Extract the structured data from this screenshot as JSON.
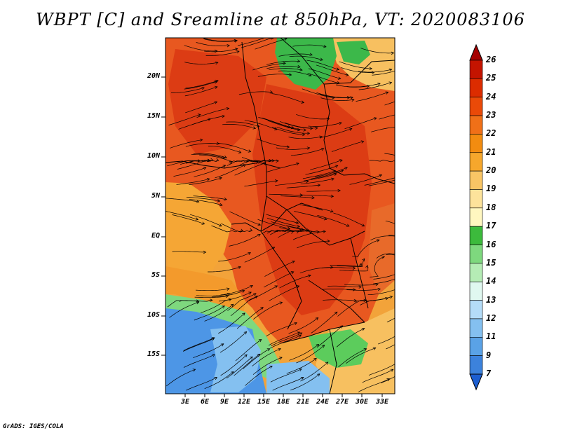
{
  "title": "WBPT [C] and Sreamline at 850hPa, VT: 2020083106",
  "footer": "GrADS: IGES/COLA",
  "map": {
    "lat_labels": [
      "20N",
      "15N",
      "10N",
      "5N",
      "EQ",
      "5S",
      "10S",
      "15S"
    ],
    "lon_labels": [
      "3E",
      "6E",
      "9E",
      "12E",
      "15E",
      "18E",
      "21E",
      "24E",
      "27E",
      "30E",
      "33E"
    ],
    "variable": "wet-bulb potential temperature",
    "units": "C",
    "level": "850hPa"
  },
  "colorbar": {
    "labels": [
      "26",
      "25",
      "24",
      "23",
      "22",
      "21",
      "20",
      "19",
      "18",
      "17",
      "16",
      "15",
      "14",
      "13",
      "12",
      "11",
      "9",
      "7"
    ],
    "colors": [
      "#a50000",
      "#c41400",
      "#dc2c00",
      "#ea4a08",
      "#f07018",
      "#f28c10",
      "#f6a72c",
      "#f9c565",
      "#fde39b",
      "#fff7c0",
      "#3cba3c",
      "#7ed87e",
      "#b5ecb5",
      "#e0f8f0",
      "#b4dcf8",
      "#84c0f0",
      "#5aa2e6",
      "#3c82dc",
      "#1c5ed0"
    ]
  },
  "regions": [
    {
      "name": "warm-interior",
      "color": "#e85820"
    },
    {
      "name": "hot-core",
      "color": "#dc3c14"
    },
    {
      "name": "coastal-bulge",
      "color": "#f5a635"
    },
    {
      "name": "gulf-of-guinea",
      "color": "#f39a2c"
    },
    {
      "name": "southwest-cool",
      "color": "#4d96e6"
    },
    {
      "name": "north-green",
      "color": "#3cb84a"
    },
    {
      "name": "southeast-green",
      "color": "#5ccc5c"
    }
  ]
}
